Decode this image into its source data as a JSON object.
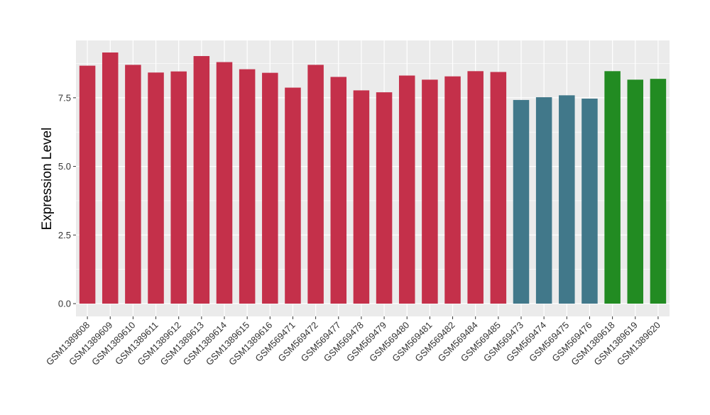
{
  "chart_data": {
    "type": "bar",
    "title": "",
    "xlabel": "",
    "ylabel": "Expression Level",
    "ylim": [
      0,
      9.15
    ],
    "y_ticks": [
      "0.0",
      "2.5",
      "5.0",
      "7.5"
    ],
    "y_tick_values": [
      0,
      2.5,
      5.0,
      7.5
    ],
    "grid": true,
    "legend": "none",
    "categories": [
      "GSM1389608",
      "GSM1389609",
      "GSM1389610",
      "GSM1389611",
      "GSM1389612",
      "GSM1389613",
      "GSM1389614",
      "GSM1389615",
      "GSM1389616",
      "GSM569471",
      "GSM569472",
      "GSM569477",
      "GSM569478",
      "GSM569479",
      "GSM569480",
      "GSM569481",
      "GSM569482",
      "GSM569484",
      "GSM569485",
      "GSM569473",
      "GSM569474",
      "GSM569475",
      "GSM569476",
      "GSM1389618",
      "GSM1389619",
      "GSM1389620"
    ],
    "values": [
      8.67,
      9.15,
      8.7,
      8.42,
      8.46,
      9.02,
      8.8,
      8.54,
      8.41,
      7.87,
      8.7,
      8.26,
      7.77,
      7.7,
      8.31,
      8.16,
      8.28,
      8.47,
      8.44,
      7.42,
      7.52,
      7.59,
      7.47,
      8.47,
      8.16,
      8.19
    ],
    "bar_colors": [
      "#c4304a",
      "#c4304a",
      "#c4304a",
      "#c4304a",
      "#c4304a",
      "#c4304a",
      "#c4304a",
      "#c4304a",
      "#c4304a",
      "#c4304a",
      "#c4304a",
      "#c4304a",
      "#c4304a",
      "#c4304a",
      "#c4304a",
      "#c4304a",
      "#c4304a",
      "#c4304a",
      "#c4304a",
      "#41788a",
      "#41788a",
      "#41788a",
      "#41788a",
      "#228b22",
      "#228b22",
      "#228b22"
    ],
    "panel_background": "#ebebeb",
    "grid_color": "#ffffff"
  }
}
